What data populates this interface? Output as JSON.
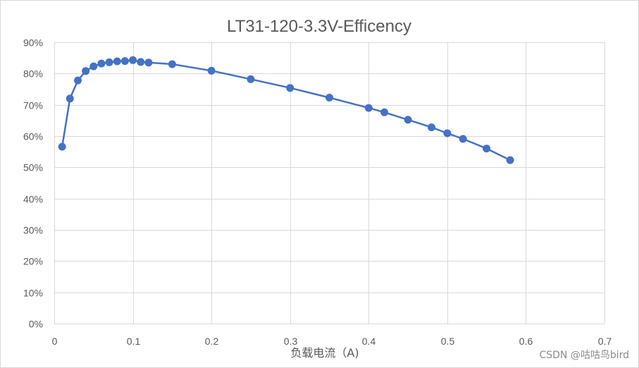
{
  "chart_data": {
    "type": "line",
    "title": "LT31-120-3.3V-Efficency",
    "xlabel": "负载电流（A)",
    "ylabel": "",
    "xlim": [
      0,
      0.7
    ],
    "ylim": [
      0,
      0.9
    ],
    "x_ticks": [
      0,
      0.1,
      0.2,
      0.3,
      0.4,
      0.5,
      0.6,
      0.7
    ],
    "x_tick_labels": [
      "0",
      "0.1",
      "0.2",
      "0.3",
      "0.4",
      "0.5",
      "0.6",
      "0.7"
    ],
    "y_ticks": [
      0,
      0.1,
      0.2,
      0.3,
      0.4,
      0.5,
      0.6,
      0.7,
      0.8,
      0.9
    ],
    "y_tick_labels": [
      "0%",
      "10%",
      "20%",
      "30%",
      "40%",
      "50%",
      "60%",
      "70%",
      "80%",
      "90%"
    ],
    "grid": true,
    "legend": "none",
    "series": [
      {
        "name": "Efficiency",
        "color": "#4472c4",
        "marker": "circle",
        "x": [
          0.01,
          0.02,
          0.03,
          0.04,
          0.05,
          0.06,
          0.07,
          0.08,
          0.09,
          0.1,
          0.11,
          0.12,
          0.15,
          0.2,
          0.25,
          0.3,
          0.35,
          0.4,
          0.42,
          0.45,
          0.48,
          0.5,
          0.52,
          0.55,
          0.58
        ],
        "y": [
          0.566,
          0.72,
          0.778,
          0.808,
          0.823,
          0.832,
          0.836,
          0.839,
          0.84,
          0.843,
          0.837,
          0.835,
          0.83,
          0.809,
          0.782,
          0.754,
          0.723,
          0.69,
          0.676,
          0.652,
          0.628,
          0.609,
          0.591,
          0.56,
          0.523
        ]
      }
    ]
  },
  "watermark": "CSDN @咕咕鸟bird",
  "colors": {
    "series": "#4472c4",
    "grid": "#d9d9d9",
    "text": "#595959",
    "background": "#ffffff"
  }
}
